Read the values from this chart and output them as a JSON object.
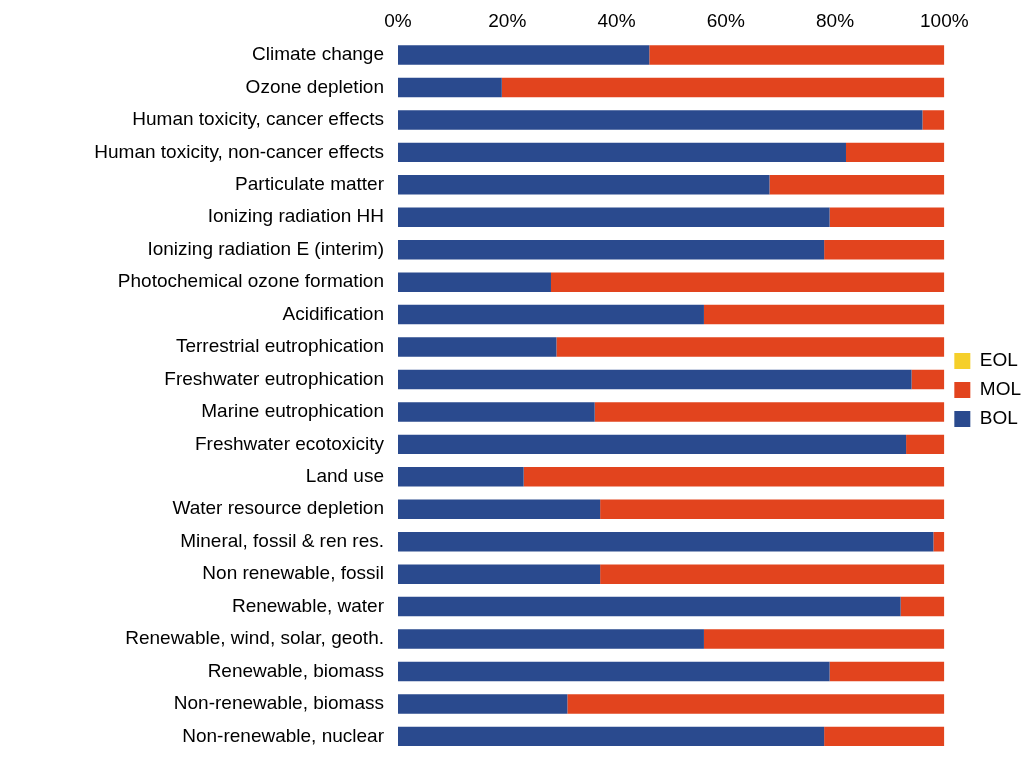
{
  "chart_data": {
    "type": "bar",
    "orientation": "horizontal",
    "stacked": true,
    "categories": [
      "Climate change",
      "Ozone depletion",
      "Human toxicity, cancer effects",
      "Human toxicity, non-cancer effects",
      "Particulate matter",
      "Ionizing radiation HH",
      "Ionizing radiation E (interim)",
      "Photochemical ozone formation",
      "Acidification",
      "Terrestrial eutrophication",
      "Freshwater eutrophication",
      "Marine eutrophication",
      "Freshwater ecotoxicity",
      "Land use",
      "Water resource depletion",
      "Mineral, fossil & ren res.",
      "Non renewable, fossil",
      "Renewable, water",
      "Renewable, wind, solar, geoth.",
      "Renewable, biomass",
      "Non-renewable, biomass",
      "Non-renewable, nuclear"
    ],
    "series": [
      {
        "name": "BOL",
        "color": "#2a4a8e",
        "values": [
          46,
          19,
          96,
          82,
          68,
          79,
          78,
          28,
          56,
          29,
          94,
          36,
          93,
          23,
          37,
          98,
          37,
          92,
          56,
          79,
          31,
          78
        ]
      },
      {
        "name": "MOL",
        "color": "#e2441e",
        "values": [
          54,
          81,
          4,
          18,
          32,
          21,
          22,
          72,
          44,
          71,
          6,
          64,
          7,
          77,
          63,
          2,
          63,
          8,
          44,
          21,
          69,
          22
        ]
      },
      {
        "name": "EOL",
        "color": "#f5cf2a",
        "values": [
          0,
          0,
          0,
          0,
          0,
          0,
          0,
          0,
          0,
          0,
          0,
          0,
          0,
          0,
          0,
          0,
          0,
          0,
          0,
          0,
          0,
          0
        ]
      }
    ],
    "xlim": [
      0,
      100
    ],
    "xticks": [
      {
        "value": 0,
        "label": "0%"
      },
      {
        "value": 20,
        "label": "20%"
      },
      {
        "value": 40,
        "label": "40%"
      },
      {
        "value": 60,
        "label": "60%"
      },
      {
        "value": 80,
        "label": "80%"
      },
      {
        "value": 100,
        "label": "100%"
      }
    ],
    "grid": false,
    "legend": "right"
  }
}
